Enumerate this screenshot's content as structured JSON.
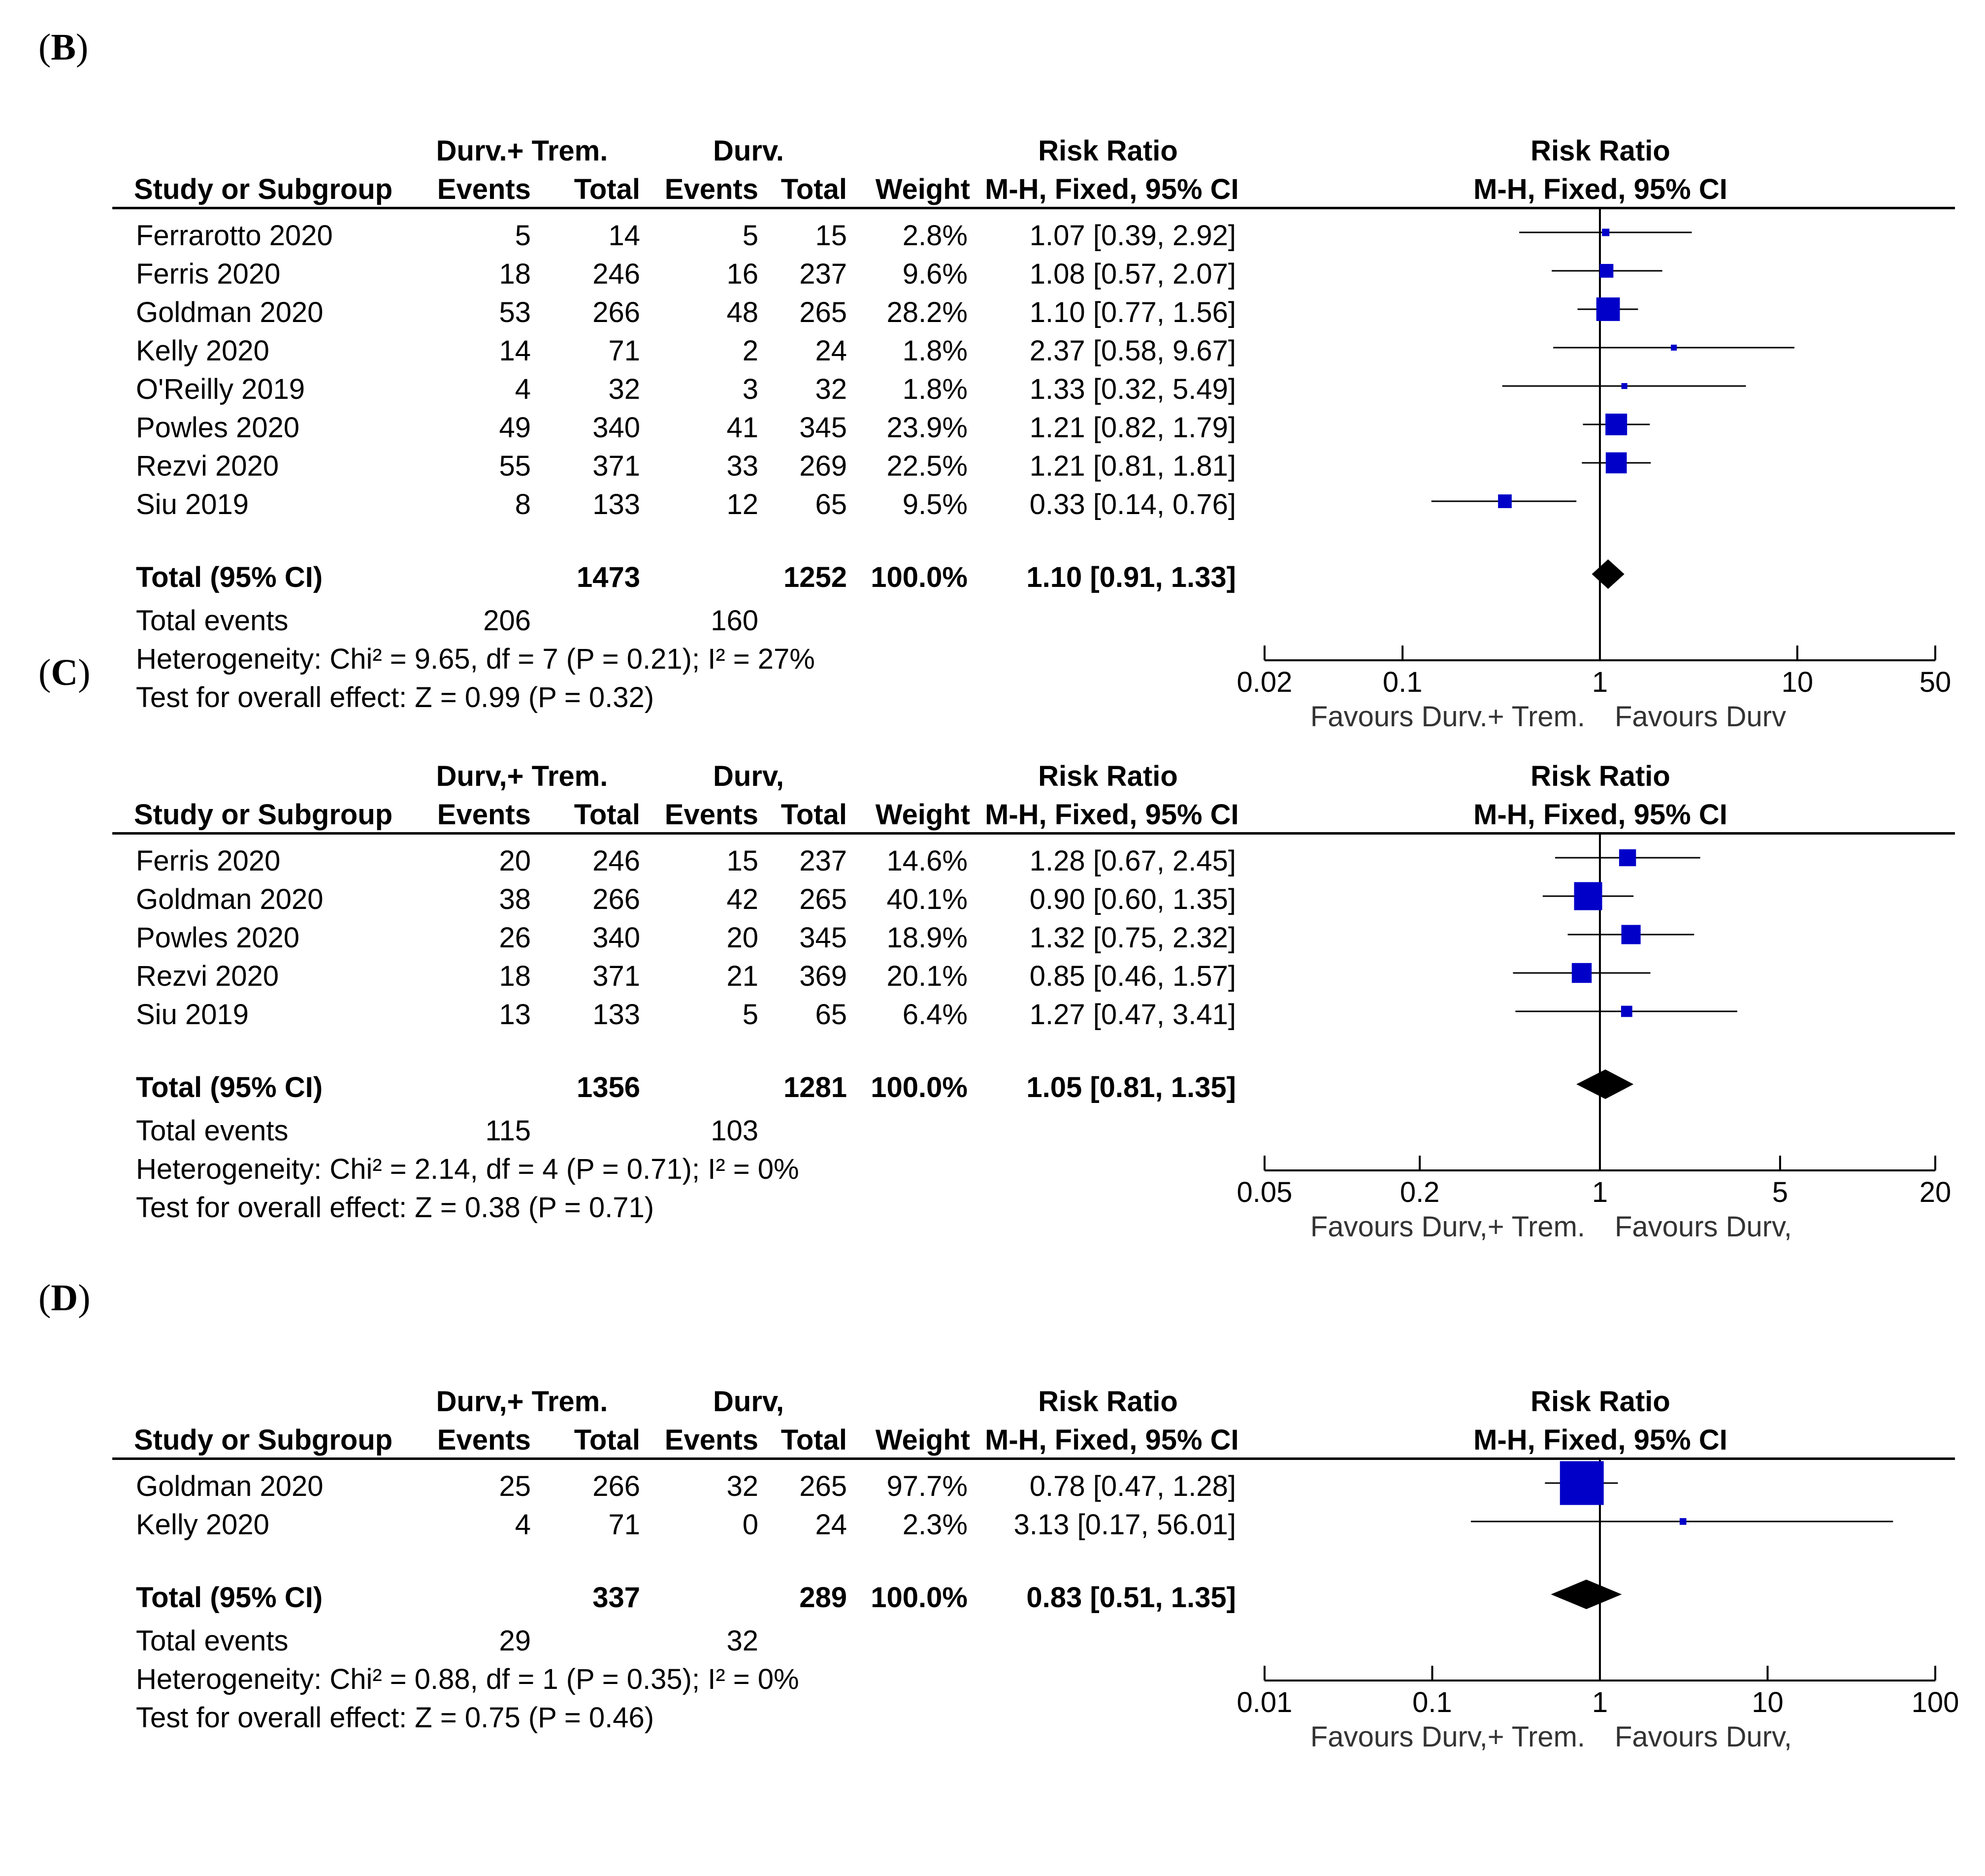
{
  "headers": {
    "study": "Study or Subgroup",
    "events": "Events",
    "total": "Total",
    "weight": "Weight",
    "rr_title": "Risk Ratio",
    "rr_method": "M-H, Fixed, 95% CI",
    "total_row_label": "Total (95% CI)",
    "total_events_label": "Total events",
    "axis_title": "Risk Ratio"
  },
  "chart_data": [
    {
      "type": "forest",
      "panel": "B",
      "group1": "Durv.+ Trem.",
      "group2": "Durv.",
      "favours_left": "Favours Durv.+ Trem.",
      "favours_right": "Favours Durv",
      "axis_ticks": [
        {
          "value": 0.02,
          "label": "0.02"
        },
        {
          "value": 0.1,
          "label": "0.1"
        },
        {
          "value": 1,
          "label": "1"
        },
        {
          "value": 10,
          "label": "10"
        },
        {
          "value": 50,
          "label": "50"
        }
      ],
      "axis_range": [
        0.02,
        50
      ],
      "studies": [
        {
          "name": "Ferrarotto 2020",
          "e1": "5",
          "t1": "14",
          "e2": "5",
          "t2": "15",
          "weight": "2.8%",
          "ci_text": "1.07 [0.39, 2.92]",
          "rr": 1.07,
          "lo": 0.39,
          "hi": 2.92,
          "w": 2.8
        },
        {
          "name": "Ferris 2020",
          "e1": "18",
          "t1": "246",
          "e2": "16",
          "t2": "237",
          "weight": "9.6%",
          "ci_text": "1.08 [0.57, 2.07]",
          "rr": 1.08,
          "lo": 0.57,
          "hi": 2.07,
          "w": 9.6
        },
        {
          "name": "Goldman 2020",
          "e1": "53",
          "t1": "266",
          "e2": "48",
          "t2": "265",
          "weight": "28.2%",
          "ci_text": "1.10 [0.77, 1.56]",
          "rr": 1.1,
          "lo": 0.77,
          "hi": 1.56,
          "w": 28.2
        },
        {
          "name": "Kelly 2020",
          "e1": "14",
          "t1": "71",
          "e2": "2",
          "t2": "24",
          "weight": "1.8%",
          "ci_text": "2.37 [0.58, 9.67]",
          "rr": 2.37,
          "lo": 0.58,
          "hi": 9.67,
          "w": 1.8
        },
        {
          "name": "O'Reilly 2019",
          "e1": "4",
          "t1": "32",
          "e2": "3",
          "t2": "32",
          "weight": "1.8%",
          "ci_text": "1.33 [0.32, 5.49]",
          "rr": 1.33,
          "lo": 0.32,
          "hi": 5.49,
          "w": 1.8
        },
        {
          "name": "Powles 2020",
          "e1": "49",
          "t1": "340",
          "e2": "41",
          "t2": "345",
          "weight": "23.9%",
          "ci_text": "1.21 [0.82, 1.79]",
          "rr": 1.21,
          "lo": 0.82,
          "hi": 1.79,
          "w": 23.9
        },
        {
          "name": "Rezvi 2020",
          "e1": "55",
          "t1": "371",
          "e2": "33",
          "t2": "269",
          "weight": "22.5%",
          "ci_text": "1.21 [0.81, 1.81]",
          "rr": 1.21,
          "lo": 0.81,
          "hi": 1.81,
          "w": 22.5
        },
        {
          "name": "Siu 2019",
          "e1": "8",
          "t1": "133",
          "e2": "12",
          "t2": "65",
          "weight": "9.5%",
          "ci_text": "0.33 [0.14, 0.76]",
          "rr": 0.33,
          "lo": 0.14,
          "hi": 0.76,
          "w": 9.5
        }
      ],
      "total": {
        "t1": "1473",
        "t2": "1252",
        "weight": "100.0%",
        "ci_text": "1.10 [0.91, 1.33]",
        "rr": 1.1,
        "lo": 0.91,
        "hi": 1.33
      },
      "total_events": {
        "e1": "206",
        "e2": "160"
      },
      "heterogeneity": "Heterogeneity: Chi² = 9.65, df = 7 (P = 0.21); I² = 27%",
      "overall_effect": "Test for overall effect: Z = 0.99 (P = 0.32)"
    },
    {
      "type": "forest",
      "panel": "C",
      "group1": "Durv,+ Trem.",
      "group2": "Durv,",
      "favours_left": "Favours Durv,+ Trem.",
      "favours_right": "Favours Durv,",
      "axis_ticks": [
        {
          "value": 0.05,
          "label": "0.05"
        },
        {
          "value": 0.2,
          "label": "0.2"
        },
        {
          "value": 1,
          "label": "1"
        },
        {
          "value": 5,
          "label": "5"
        },
        {
          "value": 20,
          "label": "20"
        }
      ],
      "axis_range": [
        0.05,
        20
      ],
      "studies": [
        {
          "name": "Ferris 2020",
          "e1": "20",
          "t1": "246",
          "e2": "15",
          "t2": "237",
          "weight": "14.6%",
          "ci_text": "1.28 [0.67, 2.45]",
          "rr": 1.28,
          "lo": 0.67,
          "hi": 2.45,
          "w": 14.6
        },
        {
          "name": "Goldman 2020",
          "e1": "38",
          "t1": "266",
          "e2": "42",
          "t2": "265",
          "weight": "40.1%",
          "ci_text": "0.90 [0.60, 1.35]",
          "rr": 0.9,
          "lo": 0.6,
          "hi": 1.35,
          "w": 40.1
        },
        {
          "name": "Powles 2020",
          "e1": "26",
          "t1": "340",
          "e2": "20",
          "t2": "345",
          "weight": "18.9%",
          "ci_text": "1.32 [0.75, 2.32]",
          "rr": 1.32,
          "lo": 0.75,
          "hi": 2.32,
          "w": 18.9
        },
        {
          "name": "Rezvi 2020",
          "e1": "18",
          "t1": "371",
          "e2": "21",
          "t2": "369",
          "weight": "20.1%",
          "ci_text": "0.85 [0.46, 1.57]",
          "rr": 0.85,
          "lo": 0.46,
          "hi": 1.57,
          "w": 20.1
        },
        {
          "name": "Siu 2019",
          "e1": "13",
          "t1": "133",
          "e2": "5",
          "t2": "65",
          "weight": "6.4%",
          "ci_text": "1.27 [0.47, 3.41]",
          "rr": 1.27,
          "lo": 0.47,
          "hi": 3.41,
          "w": 6.4
        }
      ],
      "total": {
        "t1": "1356",
        "t2": "1281",
        "weight": "100.0%",
        "ci_text": "1.05 [0.81, 1.35]",
        "rr": 1.05,
        "lo": 0.81,
        "hi": 1.35
      },
      "total_events": {
        "e1": "115",
        "e2": "103"
      },
      "heterogeneity": "Heterogeneity: Chi² = 2.14, df = 4 (P = 0.71); I² = 0%",
      "overall_effect": "Test for overall effect: Z = 0.38 (P = 0.71)"
    },
    {
      "type": "forest",
      "panel": "D",
      "group1": "Durv,+ Trem.",
      "group2": "Durv,",
      "favours_left": "Favours Durv,+ Trem.",
      "favours_right": "Favours Durv,",
      "axis_ticks": [
        {
          "value": 0.01,
          "label": "0.01"
        },
        {
          "value": 0.1,
          "label": "0.1"
        },
        {
          "value": 1,
          "label": "1"
        },
        {
          "value": 10,
          "label": "10"
        },
        {
          "value": 100,
          "label": "100"
        }
      ],
      "axis_range": [
        0.01,
        100
      ],
      "studies": [
        {
          "name": "Goldman 2020",
          "e1": "25",
          "t1": "266",
          "e2": "32",
          "t2": "265",
          "weight": "97.7%",
          "ci_text": "0.78 [0.47, 1.28]",
          "rr": 0.78,
          "lo": 0.47,
          "hi": 1.28,
          "w": 97.7
        },
        {
          "name": "Kelly 2020",
          "e1": "4",
          "t1": "71",
          "e2": "0",
          "t2": "24",
          "weight": "2.3%",
          "ci_text": "3.13 [0.17, 56.01]",
          "rr": 3.13,
          "lo": 0.17,
          "hi": 56.01,
          "w": 2.3
        }
      ],
      "total": {
        "t1": "337",
        "t2": "289",
        "weight": "100.0%",
        "ci_text": "0.83 [0.51, 1.35]",
        "rr": 0.83,
        "lo": 0.51,
        "hi": 1.35
      },
      "total_events": {
        "e1": "29",
        "e2": "32"
      },
      "heterogeneity": "Heterogeneity: Chi² = 0.88, df = 1 (P = 0.35); I² = 0%",
      "overall_effect": "Test for overall effect: Z = 0.75 (P = 0.46)"
    }
  ],
  "colors": {
    "marker": "#0000c8",
    "line": "#000000",
    "diamond": "#000000"
  }
}
